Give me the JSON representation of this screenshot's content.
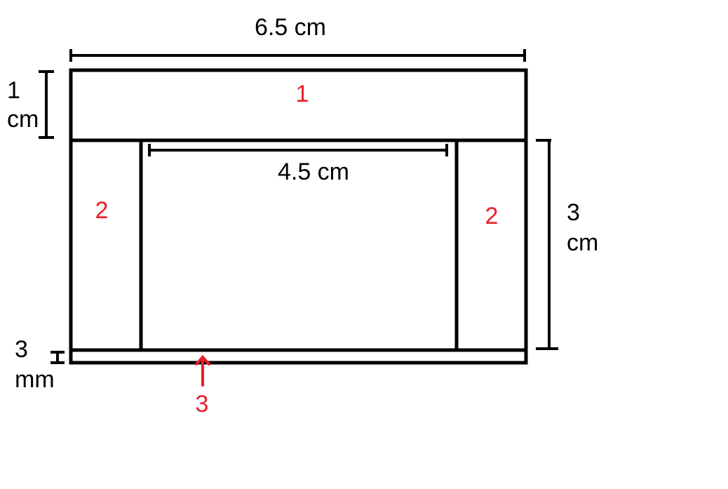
{
  "dimensions": {
    "width_label": "6.5 cm",
    "top_height_label": [
      "1",
      "cm"
    ],
    "inner_width_label": "4.5 cm",
    "side_height_label": [
      "3",
      "cm"
    ],
    "bottom_height_label": [
      "3",
      "mm"
    ]
  },
  "parts": {
    "top": "1",
    "left": "2",
    "right": "2",
    "bottom": "3"
  },
  "colors": {
    "line": "#000000",
    "part_label": "#e8202a"
  }
}
